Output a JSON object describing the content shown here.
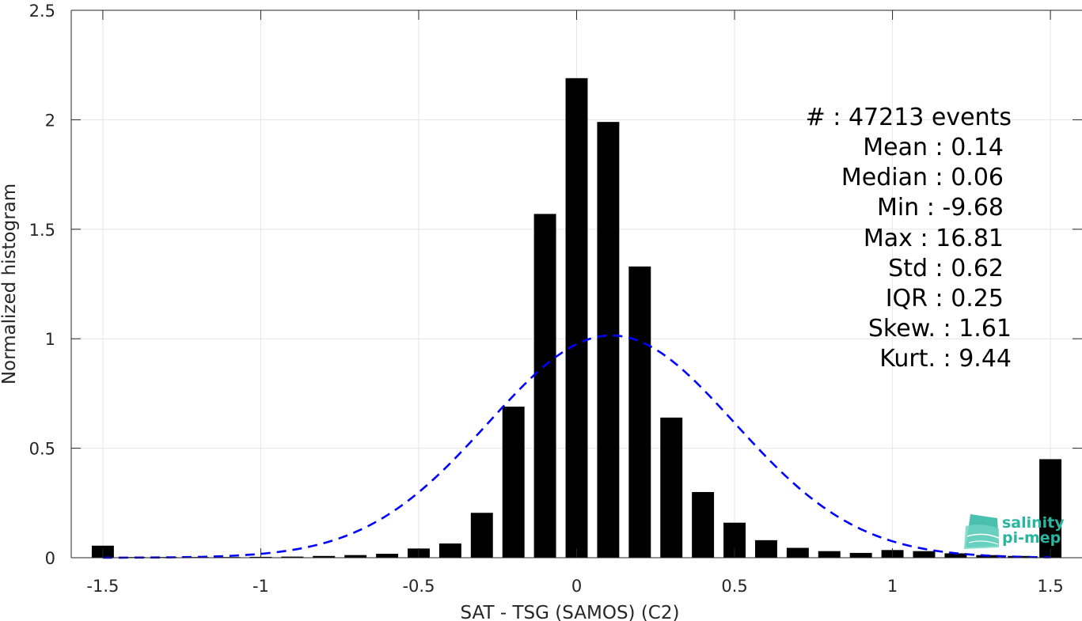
{
  "chart_data": {
    "type": "bar",
    "xlabel": "SAT - TSG (SAMOS) (C2)",
    "ylabel": "Normalized histogram",
    "xlim": [
      -1.6,
      1.6
    ],
    "ylim": [
      0,
      2.5
    ],
    "grid": true,
    "x_ticks": [
      "-1.5",
      "-1",
      "-0.5",
      "0",
      "0.5",
      "1",
      "1.5"
    ],
    "y_ticks": [
      "0",
      "0.5",
      "1",
      "1.5",
      "2",
      "2.5"
    ],
    "bars": {
      "x": [
        -1.5,
        -1.4,
        -1.3,
        -1.2,
        -1.1,
        -1.0,
        -0.9,
        -0.8,
        -0.7,
        -0.6,
        -0.5,
        -0.4,
        -0.3,
        -0.2,
        -0.1,
        0.0,
        0.1,
        0.2,
        0.3,
        0.4,
        0.5,
        0.6,
        0.7,
        0.8,
        0.9,
        1.0,
        1.1,
        1.2,
        1.3,
        1.4,
        1.5
      ],
      "values": [
        0.055,
        0.003,
        0.003,
        0.003,
        0.003,
        0.004,
        0.005,
        0.008,
        0.012,
        0.018,
        0.042,
        0.065,
        0.205,
        0.69,
        1.57,
        2.19,
        1.99,
        1.33,
        0.64,
        0.3,
        0.16,
        0.08,
        0.045,
        0.03,
        0.022,
        0.035,
        0.03,
        0.02,
        0.012,
        0.008,
        0.45
      ],
      "color": "#000000"
    },
    "fit_curve": {
      "style": "dashed",
      "color": "#0000ff",
      "mean": 0.11,
      "std": 0.39,
      "peak": 1.015,
      "x_range": [
        -1.5,
        1.5
      ]
    },
    "stats": [
      {
        "label": "#  : 47213 events"
      },
      {
        "label": "Mean : 0.14"
      },
      {
        "label": "Median : 0.06"
      },
      {
        "label": "Min : -9.68"
      },
      {
        "label": "Max : 16.81"
      },
      {
        "label": "Std : 0.62"
      },
      {
        "label": "IQR : 0.25"
      },
      {
        "label": "Skew. : 1.61"
      },
      {
        "label": "Kurt. : 9.44"
      }
    ]
  },
  "logo": {
    "line1": "salinity",
    "line2": "pi-mep",
    "color": "#2ab5a0"
  }
}
